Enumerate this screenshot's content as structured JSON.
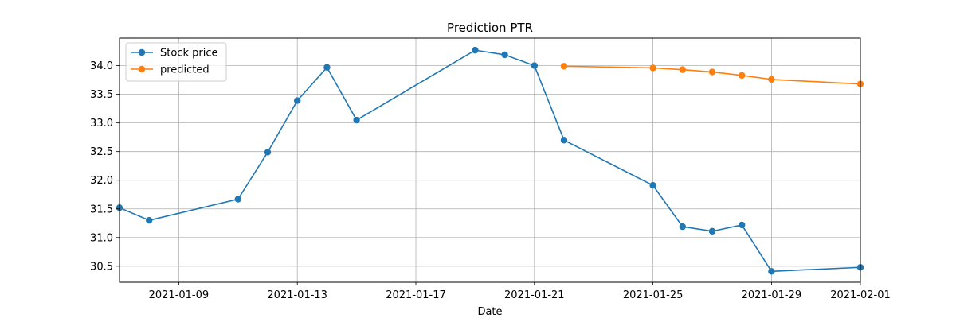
{
  "chart_data": {
    "type": "line",
    "title": "Prediction PTR",
    "xlabel": "Date",
    "ylabel": "",
    "x_type": "date",
    "xlim": [
      "2021-01-07",
      "2021-02-01"
    ],
    "ylim": [
      30.22,
      34.48
    ],
    "xticks": [
      "2021-01-09",
      "2021-01-13",
      "2021-01-17",
      "2021-01-21",
      "2021-01-25",
      "2021-01-29",
      "2021-02-01"
    ],
    "yticks": [
      30.5,
      31.0,
      31.5,
      32.0,
      32.5,
      33.0,
      33.5,
      34.0
    ],
    "ytick_labels": [
      "30.5",
      "31.0",
      "31.5",
      "32.0",
      "32.5",
      "33.0",
      "33.5",
      "34.0"
    ],
    "grid": true,
    "legend_position": "top-left",
    "series": [
      {
        "name": "Stock price",
        "color": "#1f77b4",
        "marker": "circle",
        "points": [
          {
            "x": "2021-01-07",
            "y": 31.52
          },
          {
            "x": "2021-01-08",
            "y": 31.3
          },
          {
            "x": "2021-01-11",
            "y": 31.67
          },
          {
            "x": "2021-01-12",
            "y": 32.49
          },
          {
            "x": "2021-01-13",
            "y": 33.39
          },
          {
            "x": "2021-01-14",
            "y": 33.97
          },
          {
            "x": "2021-01-15",
            "y": 33.05
          },
          {
            "x": "2021-01-19",
            "y": 34.27
          },
          {
            "x": "2021-01-20",
            "y": 34.19
          },
          {
            "x": "2021-01-21",
            "y": 34.0
          },
          {
            "x": "2021-01-22",
            "y": 32.7
          },
          {
            "x": "2021-01-25",
            "y": 31.91
          },
          {
            "x": "2021-01-26",
            "y": 31.19
          },
          {
            "x": "2021-01-27",
            "y": 31.11
          },
          {
            "x": "2021-01-28",
            "y": 31.22
          },
          {
            "x": "2021-01-29",
            "y": 30.41
          },
          {
            "x": "2021-02-01",
            "y": 30.48
          }
        ]
      },
      {
        "name": "predicted",
        "color": "#ff7f0e",
        "marker": "circle",
        "points": [
          {
            "x": "2021-01-22",
            "y": 33.99
          },
          {
            "x": "2021-01-25",
            "y": 33.96
          },
          {
            "x": "2021-01-26",
            "y": 33.93
          },
          {
            "x": "2021-01-27",
            "y": 33.89
          },
          {
            "x": "2021-01-28",
            "y": 33.83
          },
          {
            "x": "2021-01-29",
            "y": 33.76
          },
          {
            "x": "2021-02-01",
            "y": 33.68
          }
        ]
      }
    ]
  }
}
